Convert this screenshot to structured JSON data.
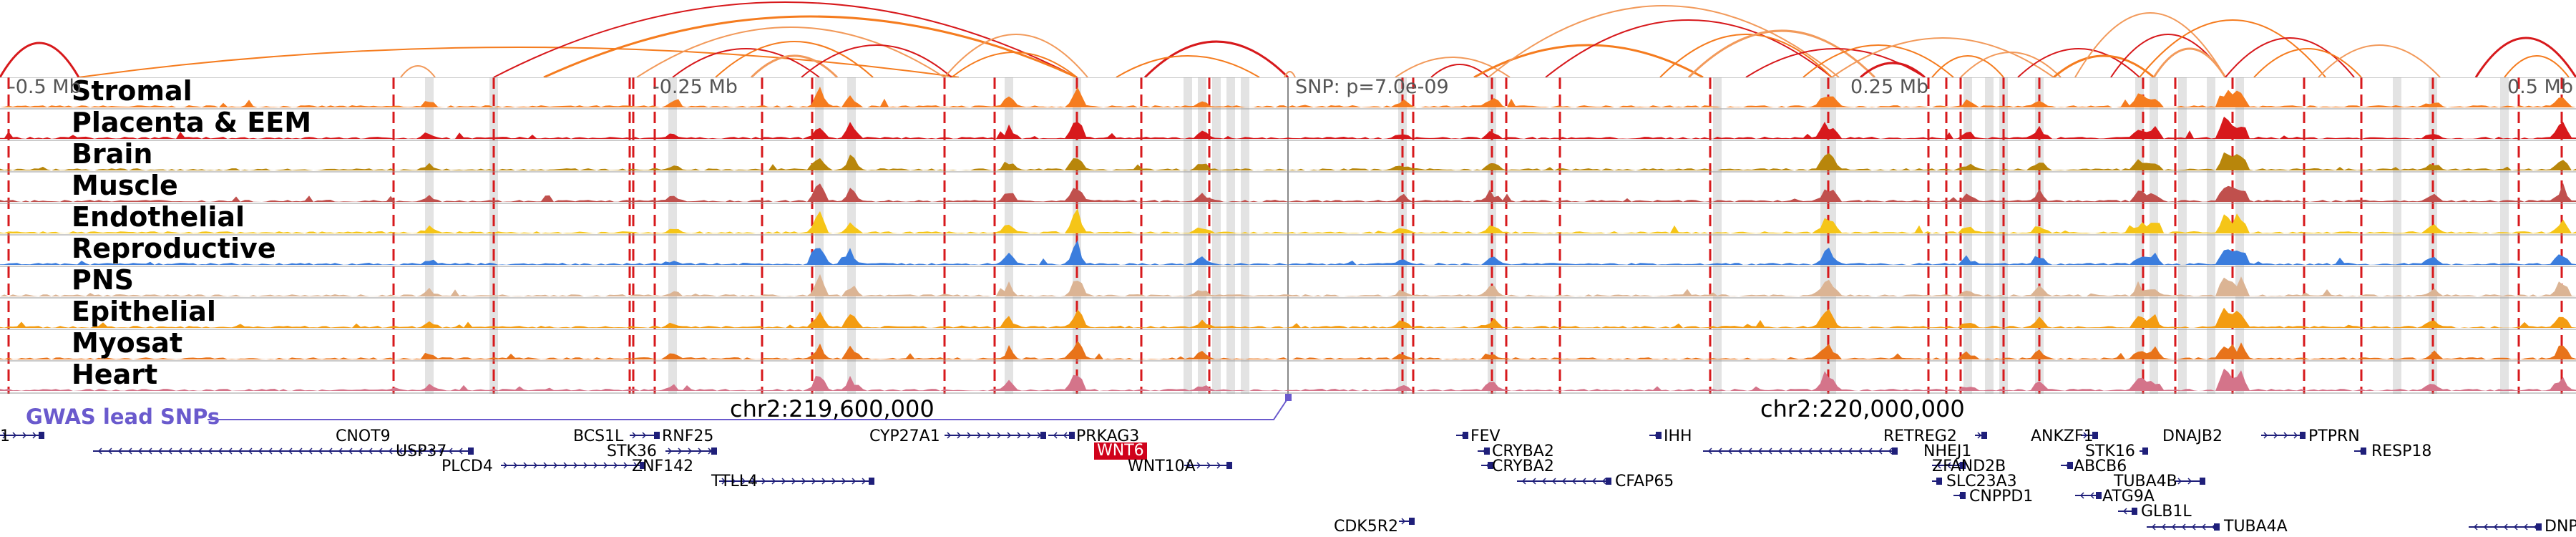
{
  "colors": {
    "Stromal": "#f57c1f",
    "Placenta & EEM": "#d7191c",
    "Brain": "#b8860b",
    "Muscle": "#c0504d",
    "Endothelial": "#f5c518",
    "Reproductive": "#3b7ddd",
    "PNS": "#dbb494",
    "Epithelial": "#f39c12",
    "Myosat": "#e8731a",
    "Heart": "#d4748a",
    "snp": "#6a5acd",
    "gene": "#1f1f7a",
    "highlight": "#d0021b",
    "boundary": "#d7191c"
  },
  "coordinates": {
    "ticks": [
      "-0.5 Mb",
      "-0.25 Mb",
      "SNP: p=7.0e-09",
      "0.25 Mb",
      "0.5 Mb"
    ],
    "chr_labels": [
      "chr2:219,600,000",
      "chr2:220,000,000"
    ]
  },
  "tracks": [
    {
      "label": "Stromal",
      "color_key": "Stromal"
    },
    {
      "label": "Placenta & EEM",
      "color_key": "Placenta & EEM"
    },
    {
      "label": "Brain",
      "color_key": "Brain"
    },
    {
      "label": "Muscle",
      "color_key": "Muscle"
    },
    {
      "label": "Endothelial",
      "color_key": "Endothelial"
    },
    {
      "label": "Reproductive",
      "color_key": "Reproductive"
    },
    {
      "label": "PNS",
      "color_key": "PNS"
    },
    {
      "label": "Epithelial",
      "color_key": "Epithelial"
    },
    {
      "label": "Myosat",
      "color_key": "Myosat"
    },
    {
      "label": "Heart",
      "color_key": "Heart"
    }
  ],
  "snp_track": {
    "label": "GWAS lead SNPs"
  },
  "genes": [
    {
      "name": "CNOT9",
      "strand": "+",
      "highlight": false
    },
    {
      "name": "USP37",
      "strand": "-",
      "highlight": false
    },
    {
      "name": "PLCD4",
      "strand": "+",
      "highlight": false
    },
    {
      "name": "BCS1L",
      "strand": "+",
      "highlight": false
    },
    {
      "name": "RNF25",
      "strand": "-",
      "highlight": false
    },
    {
      "name": "STK36",
      "strand": "+",
      "highlight": false
    },
    {
      "name": "ZNF142",
      "strand": "-",
      "highlight": false
    },
    {
      "name": "TTLL4",
      "strand": "+",
      "highlight": false
    },
    {
      "name": "CYP27A1",
      "strand": "+",
      "highlight": false
    },
    {
      "name": "PRKAG3",
      "strand": "-",
      "highlight": false
    },
    {
      "name": "WNT6",
      "strand": "+",
      "highlight": true
    },
    {
      "name": "WNT10A",
      "strand": "+",
      "highlight": false
    },
    {
      "name": "CDK5R2",
      "strand": "+",
      "highlight": false
    },
    {
      "name": "FEV",
      "strand": "-",
      "highlight": false
    },
    {
      "name": "CRYBA2",
      "strand": "-",
      "highlight": false
    },
    {
      "name": "CRYBA2",
      "strand": "-",
      "highlight": false
    },
    {
      "name": "CFAP65",
      "strand": "-",
      "highlight": false
    },
    {
      "name": "IHH",
      "strand": "-",
      "highlight": false
    },
    {
      "name": "RETREG2",
      "strand": "+",
      "highlight": false
    },
    {
      "name": "NHEJ1",
      "strand": "-",
      "highlight": false
    },
    {
      "name": "ZFAND2B",
      "strand": "+",
      "highlight": false
    },
    {
      "name": "SLC23A3",
      "strand": "-",
      "highlight": false
    },
    {
      "name": "CNPPD1",
      "strand": "-",
      "highlight": false
    },
    {
      "name": "ANKZF1",
      "strand": "+",
      "highlight": false
    },
    {
      "name": "STK16",
      "strand": "+",
      "highlight": false
    },
    {
      "name": "ABCB6",
      "strand": "-",
      "highlight": false
    },
    {
      "name": "TUBA4B",
      "strand": "+",
      "highlight": false
    },
    {
      "name": "ATG9A",
      "strand": "-",
      "highlight": false
    },
    {
      "name": "GLB1L",
      "strand": "-",
      "highlight": false
    },
    {
      "name": "TUBA4A",
      "strand": "-",
      "highlight": false
    },
    {
      "name": "DNAJB2",
      "strand": "+",
      "highlight": false
    },
    {
      "name": "PTPRN",
      "strand": "-",
      "highlight": false
    },
    {
      "name": "RESP18",
      "strand": "-",
      "highlight": false
    },
    {
      "name": "DNPEP",
      "strand": "-",
      "highlight": false
    },
    {
      "name": "1",
      "strand": "+",
      "highlight": false
    }
  ]
}
